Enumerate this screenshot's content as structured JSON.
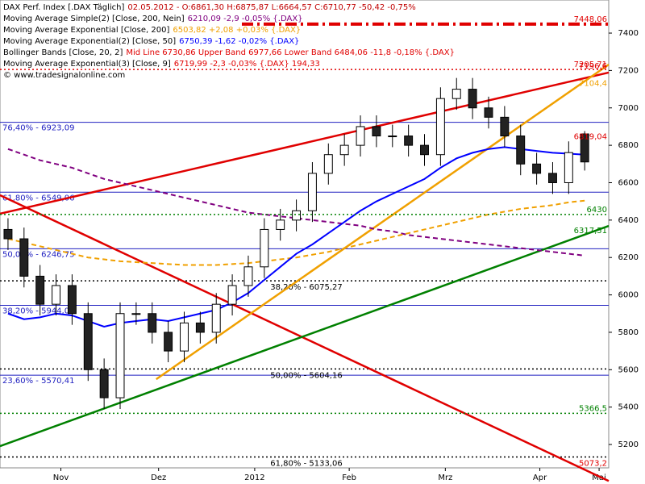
{
  "chart_data": {
    "type": "candlestick",
    "legend": [
      {
        "name": "DAX Perf. Index [.DAX Täglich]",
        "values": "02.05.2012 - O:6861,30 H:6875,87 L:6664,57 C:6710,77 -50,42 -0,75%",
        "color": "#c00000"
      },
      {
        "name": "Moving Average Simple(2) [Close, 200, Nein]",
        "values": "6210,09 -2,9 -0,05% {.DAX}",
        "color": "#800080"
      },
      {
        "name": "Moving Average Exponential [Close, 200]",
        "values": "6503,82 +2,08 +0,03% {.DAX}",
        "color": "#f0a000"
      },
      {
        "name": "Moving Average Exponential(2) [Close, 50]",
        "values": "6750,39 -1,62 -0,02% {.DAX}",
        "color": "#0000ff"
      },
      {
        "name": "Bollinger Bands [Close, 20, 2]",
        "values": "Mid Line 6730,86 Upper Band 6977,66 Lower Band 6484,06 -11,8 -0,18% {.DAX}",
        "color": "#e00000"
      },
      {
        "name": "Moving Average Exponential(3) [Close, 9]",
        "values": "6719,99 -2,3 -0,03% {.DAX} 194,33",
        "color": "#e00000"
      }
    ],
    "copyright": "© www.tradesignalonline.com",
    "xlim": [
      -0.5,
      37.5
    ],
    "xticks": [
      {
        "value": 3.3,
        "label": "Nov"
      },
      {
        "value": 9.4,
        "label": "Dez"
      },
      {
        "value": 15.4,
        "label": "2012"
      },
      {
        "value": 21.3,
        "label": "Feb"
      },
      {
        "value": 27.3,
        "label": "Mrz"
      },
      {
        "value": 33.2,
        "label": "Apr"
      },
      {
        "value": 36.9,
        "label": "Mai"
      }
    ],
    "ylim": [
      5075,
      7577
    ],
    "yticks": [
      5200,
      5400,
      5600,
      5800,
      6000,
      6200,
      6400,
      6600,
      6800,
      7000,
      7200,
      7400
    ],
    "open": [
      6350,
      6300,
      6100,
      5950,
      6050,
      5900,
      5600,
      5450,
      5900,
      5900,
      5800,
      5700,
      5850,
      5800,
      5950,
      6050,
      6150,
      6350,
      6400,
      6450,
      6650,
      6750,
      6800,
      6900,
      6850,
      6850,
      6800,
      6750,
      7050,
      7100,
      7000,
      6950,
      6850,
      6700,
      6650,
      6600,
      6861
    ],
    "high": [
      6410,
      6360,
      6160,
      6110,
      6110,
      5960,
      5660,
      5960,
      5960,
      5960,
      5860,
      5910,
      5910,
      6010,
      6110,
      6210,
      6410,
      6460,
      6510,
      6710,
      6810,
      6860,
      6960,
      6960,
      6910,
      6910,
      6860,
      7110,
      7160,
      7160,
      7060,
      7010,
      6910,
      6760,
      6710,
      6821,
      6876
    ],
    "low": [
      6240,
      6040,
      5890,
      5890,
      5840,
      5540,
      5390,
      5390,
      5840,
      5740,
      5640,
      5640,
      5740,
      5740,
      5890,
      5990,
      6090,
      6290,
      6340,
      6390,
      6590,
      6690,
      6740,
      6790,
      6790,
      6740,
      6690,
      6690,
      6990,
      6940,
      6890,
      6790,
      6640,
      6590,
      6540,
      6540,
      6665
    ],
    "close": [
      6300,
      6100,
      5950,
      6050,
      5900,
      5600,
      5450,
      5900,
      5900,
      5800,
      5700,
      5850,
      5800,
      5950,
      6050,
      6150,
      6350,
      6400,
      6450,
      6650,
      6750,
      6800,
      6900,
      6850,
      6850,
      6800,
      6750,
      7050,
      7100,
      7000,
      6950,
      6850,
      6700,
      6650,
      6600,
      6761,
      6711
    ],
    "series": [
      {
        "name": "SMA 200",
        "color": "#800080",
        "dashed": true,
        "values": [
          6780,
          6750,
          6720,
          6700,
          6680,
          6650,
          6620,
          6600,
          6580,
          6560,
          6540,
          6520,
          6500,
          6480,
          6460,
          6440,
          6430,
          6420,
          6410,
          6400,
          6390,
          6380,
          6370,
          6350,
          6340,
          6320,
          6310,
          6300,
          6290,
          6280,
          6270,
          6260,
          6250,
          6240,
          6230,
          6220,
          6210
        ]
      },
      {
        "name": "EMA 200",
        "color": "#f0a000",
        "dashed": true,
        "values": [
          6300,
          6280,
          6260,
          6240,
          6220,
          6200,
          6190,
          6180,
          6175,
          6170,
          6165,
          6160,
          6160,
          6160,
          6165,
          6170,
          6180,
          6190,
          6200,
          6215,
          6230,
          6250,
          6270,
          6290,
          6310,
          6330,
          6350,
          6370,
          6390,
          6410,
          6430,
          6445,
          6460,
          6470,
          6480,
          6495,
          6504
        ]
      },
      {
        "name": "EMA 50",
        "color": "#0000ff",
        "dashed": false,
        "values": [
          5900,
          5870,
          5880,
          5900,
          5890,
          5860,
          5830,
          5850,
          5860,
          5870,
          5860,
          5880,
          5900,
          5920,
          5960,
          6010,
          6080,
          6150,
          6220,
          6270,
          6330,
          6390,
          6450,
          6500,
          6540,
          6580,
          6620,
          6680,
          6730,
          6760,
          6780,
          6790,
          6780,
          6770,
          6760,
          6755,
          6750
        ]
      }
    ],
    "trend_lines": [
      {
        "color": "#e00000",
        "x": [
          -0.5,
          37.5
        ],
        "values": [
          6434,
          7189
        ]
      },
      {
        "color": "#e00000",
        "x": [
          -0.5,
          37.5
        ],
        "values": [
          6533,
          5005
        ]
      },
      {
        "color": "#008000",
        "x": [
          -0.5,
          37.5
        ],
        "values": [
          5191,
          6369
        ]
      },
      {
        "color": "#f0a000",
        "x": [
          9.25,
          37.5
        ],
        "values": [
          5549,
          7232
        ]
      }
    ],
    "fibonacci_levels": [
      {
        "value": 6923.09,
        "label": "76,40% - 6923,09"
      },
      {
        "value": 6549.06,
        "label": "61,80% - 6549,06"
      },
      {
        "value": 6246.75,
        "label": "50,00% - 6246,75"
      },
      {
        "value": 5944.06,
        "label": "38,20% - 5944,06"
      },
      {
        "value": 5570.41,
        "label": "23,60% - 5570,41"
      }
    ],
    "center_levels": [
      {
        "value": 6075.27,
        "label": "38,20% - 6075,27"
      },
      {
        "value": 5604.16,
        "label": "50,00% - 5604,16"
      },
      {
        "value": 5133.06,
        "label": "61,80% - 5133,06"
      }
    ],
    "price_markers": [
      {
        "value": 7448.06,
        "label": "7448,06",
        "color": "#e00000",
        "style": "dashed"
      },
      {
        "value": 7205.71,
        "label": "7205,71",
        "color": "#e00000",
        "style": "dotted"
      },
      {
        "value": 7196.6,
        "label": "7196,6",
        "color": "#e00000",
        "style": "none"
      },
      {
        "value": 7104.4,
        "label": "7104,4",
        "color": "#f0a000",
        "style": "none"
      },
      {
        "value": 6819.04,
        "label": "6819,04",
        "color": "#e00000",
        "style": "none"
      },
      {
        "value": 6430,
        "label": "6430",
        "color": "#008000",
        "style": "dotted"
      },
      {
        "value": 6317.51,
        "label": "6317,51",
        "color": "#008000",
        "style": "none"
      },
      {
        "value": 5366.5,
        "label": "5366,5",
        "color": "#008000",
        "style": "dotted"
      },
      {
        "value": 5073.2,
        "label": "5073,2",
        "color": "#e00000",
        "style": "none"
      }
    ]
  }
}
